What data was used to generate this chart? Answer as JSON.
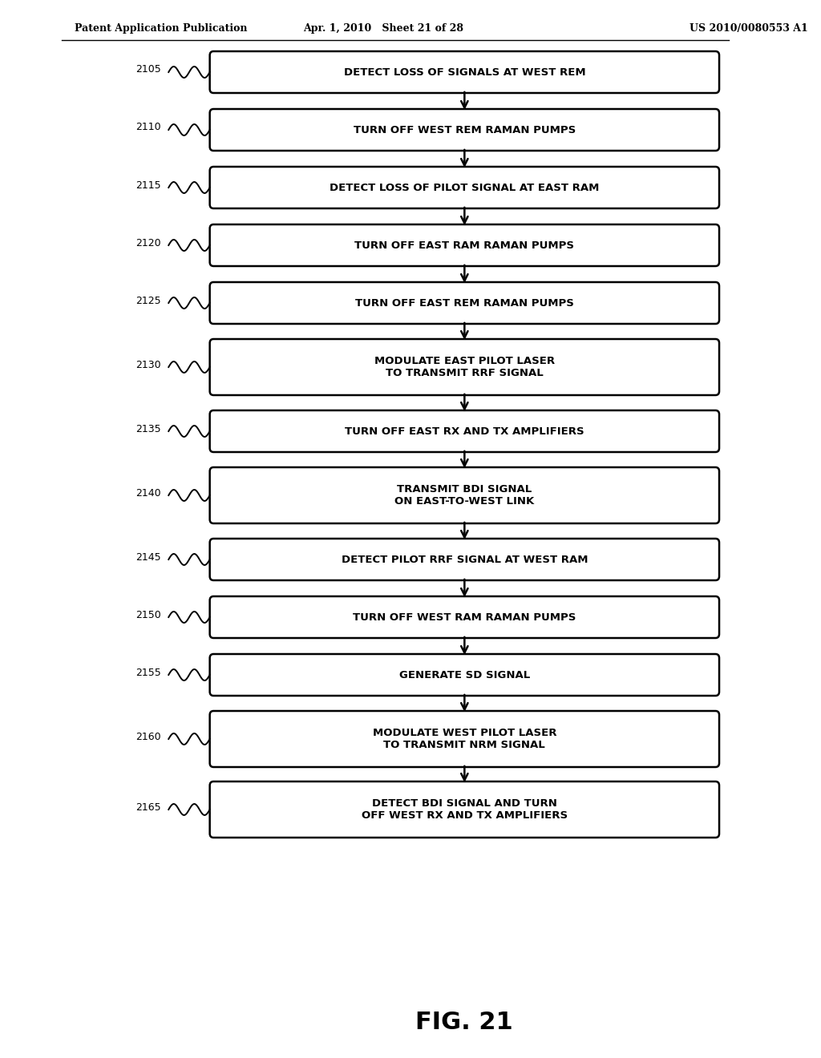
{
  "header_left": "Patent Application Publication",
  "header_mid": "Apr. 1, 2010   Sheet 21 of 28",
  "header_right": "US 2010/0080553 A1",
  "figure_label": "FIG. 21",
  "background_color": "#ffffff",
  "boxes": [
    {
      "id": "2105",
      "label": "DETECT LOSS OF SIGNALS AT WEST REM",
      "lines": 1
    },
    {
      "id": "2110",
      "label": "TURN OFF WEST REM RAMAN PUMPS",
      "lines": 1
    },
    {
      "id": "2115",
      "label": "DETECT LOSS OF PILOT SIGNAL AT EAST RAM",
      "lines": 1
    },
    {
      "id": "2120",
      "label": "TURN OFF EAST RAM RAMAN PUMPS",
      "lines": 1
    },
    {
      "id": "2125",
      "label": "TURN OFF EAST REM RAMAN PUMPS",
      "lines": 1
    },
    {
      "id": "2130",
      "label": "MODULATE EAST PILOT LASER\nTO TRANSMIT RRF SIGNAL",
      "lines": 2
    },
    {
      "id": "2135",
      "label": "TURN OFF EAST RX AND TX AMPLIFIERS",
      "lines": 1
    },
    {
      "id": "2140",
      "label": "TRANSMIT BDI SIGNAL\nON EAST-TO-WEST LINK",
      "lines": 2
    },
    {
      "id": "2145",
      "label": "DETECT PILOT RRF SIGNAL AT WEST RAM",
      "lines": 1
    },
    {
      "id": "2150",
      "label": "TURN OFF WEST RAM RAMAN PUMPS",
      "lines": 1
    },
    {
      "id": "2155",
      "label": "GENERATE SD SIGNAL",
      "lines": 1
    },
    {
      "id": "2160",
      "label": "MODULATE WEST PILOT LASER\nTO TRANSMIT NRM SIGNAL",
      "lines": 2
    },
    {
      "id": "2165",
      "label": "DETECT BDI SIGNAL AND TURN\nOFF WEST RX AND TX AMPLIFIERS",
      "lines": 2
    }
  ]
}
